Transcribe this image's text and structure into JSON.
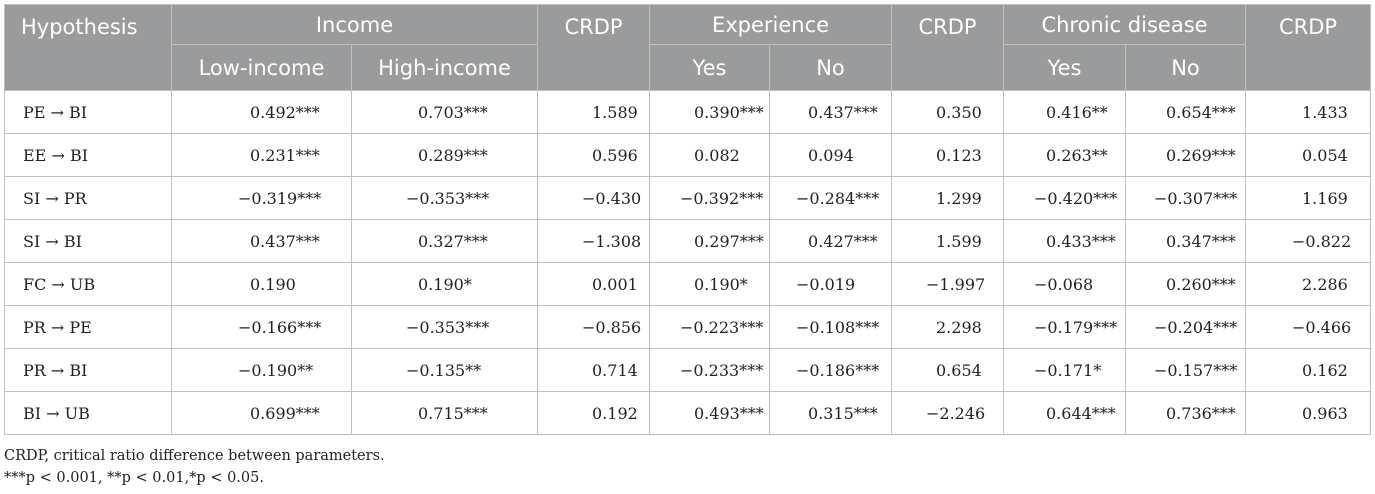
{
  "header": {
    "hypothesis": "Hypothesis",
    "income": "Income",
    "crdp": "CRDP",
    "experience": "Experience",
    "chronic_disease": "Chronic disease",
    "low_income": "Low-income",
    "high_income": "High-income",
    "yes": "Yes",
    "no": "No"
  },
  "rows": [
    {
      "hyp": "PE →  BI",
      "low": "0.492***",
      "high": "0.703***",
      "crdp1": "1.589",
      "exp_yes": "0.390***",
      "exp_no": "0.437***",
      "crdp2": "0.350",
      "cd_yes": "0.416**",
      "cd_no": "0.654***",
      "crdp3": "1.433"
    },
    {
      "hyp": "EE →  BI",
      "low": "0.231***",
      "high": "0.289***",
      "crdp1": "0.596",
      "exp_yes": "0.082",
      "exp_no": "0.094",
      "crdp2": "0.123",
      "cd_yes": "0.263**",
      "cd_no": "0.269***",
      "crdp3": "0.054"
    },
    {
      "hyp": "SI →  PR",
      "low": "−0.319***",
      "high": "−0.353***",
      "crdp1": "−0.430",
      "exp_yes": "−0.392***",
      "exp_no": "−0.284***",
      "crdp2": "1.299",
      "cd_yes": "−0.420***",
      "cd_no": "−0.307***",
      "crdp3": "1.169"
    },
    {
      "hyp": "SI →  BI",
      "low": "0.437***",
      "high": "0.327***",
      "crdp1": "−1.308",
      "exp_yes": "0.297***",
      "exp_no": "0.427***",
      "crdp2": "1.599",
      "cd_yes": "0.433***",
      "cd_no": "0.347***",
      "crdp3": "−0.822"
    },
    {
      "hyp": "FC →  UB",
      "low": "0.190",
      "high": "0.190*",
      "crdp1": "0.001",
      "exp_yes": "0.190*",
      "exp_no": "−0.019",
      "crdp2": "−1.997",
      "cd_yes": "−0.068",
      "cd_no": "0.260***",
      "crdp3": "2.286"
    },
    {
      "hyp": "PR →  PE",
      "low": "−0.166***",
      "high": "−0.353***",
      "crdp1": "−0.856",
      "exp_yes": "−0.223***",
      "exp_no": "−0.108***",
      "crdp2": "2.298",
      "cd_yes": "−0.179***",
      "cd_no": "−0.204***",
      "crdp3": "−0.466"
    },
    {
      "hyp": "PR →  BI",
      "low": "−0.190**",
      "high": "−0.135**",
      "crdp1": "0.714",
      "exp_yes": "−0.233***",
      "exp_no": "−0.186***",
      "crdp2": "0.654",
      "cd_yes": "−0.171*",
      "cd_no": "−0.157***",
      "crdp3": "0.162"
    },
    {
      "hyp": "BI →  UB",
      "low": "0.699***",
      "high": "0.715***",
      "crdp1": "0.192",
      "exp_yes": "0.493***",
      "exp_no": "0.315***",
      "crdp2": "−2.246",
      "cd_yes": "0.644***",
      "cd_no": "0.736***",
      "crdp3": "0.963"
    }
  ],
  "notes": {
    "line1": "CRDP, critical ratio difference between parameters.",
    "line2": "***p < 0.001, **p < 0.01,*p < 0.05."
  }
}
